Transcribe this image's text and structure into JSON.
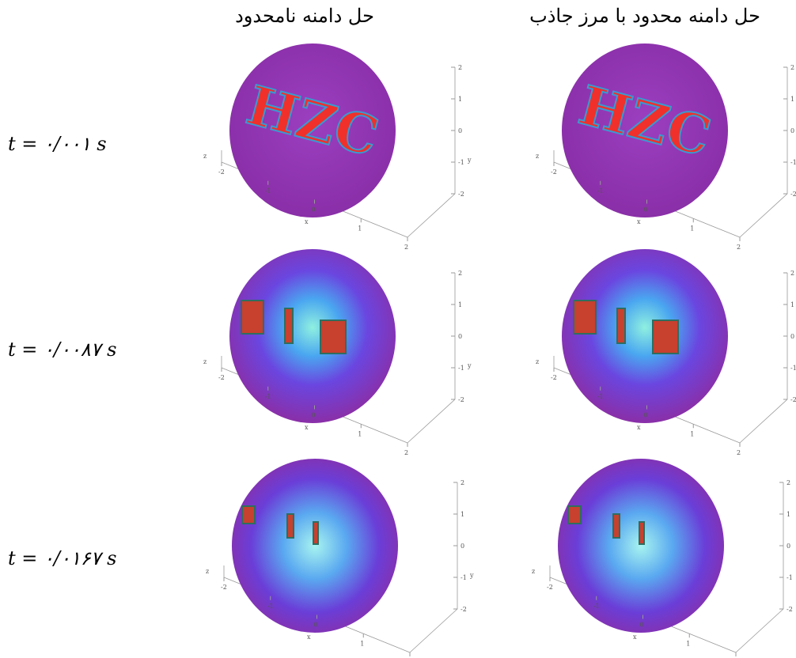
{
  "figure": {
    "columns": [
      "حل دامنه نامحدود",
      "حل دامنه محدود با مرز جاذب"
    ],
    "rows": [
      "t = ۰/۰۰۱ s",
      "t = ۰/۰۰۸۷ s",
      "t = ۰/۰۱۶۷ s"
    ],
    "letters": "HZC",
    "axis_ticks": [
      "2",
      "1",
      "0",
      "-1",
      "-2"
    ],
    "axis_names": [
      "x",
      "y",
      "z"
    ]
  }
}
